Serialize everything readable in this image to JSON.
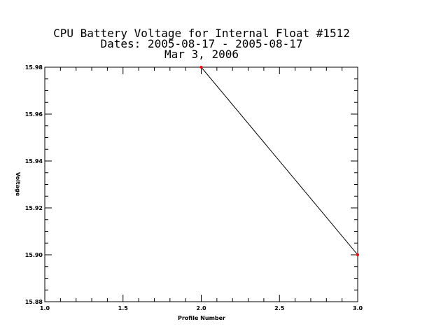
{
  "chart_data": {
    "type": "line",
    "title": [
      "CPU Battery Voltage for Internal Float #1512",
      "Dates:  2005-08-17 -  2005-08-17",
      "Mar  3, 2006"
    ],
    "xlabel": "Profile Number",
    "ylabel": "Voltage",
    "xlim": [
      1.0,
      3.0
    ],
    "ylim": [
      15.88,
      15.98
    ],
    "xticks": [
      "1.0",
      "1.5",
      "2.0",
      "2.5",
      "3.0"
    ],
    "yticks": [
      "15.88",
      "15.90",
      "15.92",
      "15.94",
      "15.96",
      "15.98"
    ],
    "x": [
      2,
      3
    ],
    "y": [
      15.98,
      15.9
    ],
    "line_color": "#000000",
    "marker_color": "#ff0000",
    "grid": false,
    "legend": "none"
  }
}
